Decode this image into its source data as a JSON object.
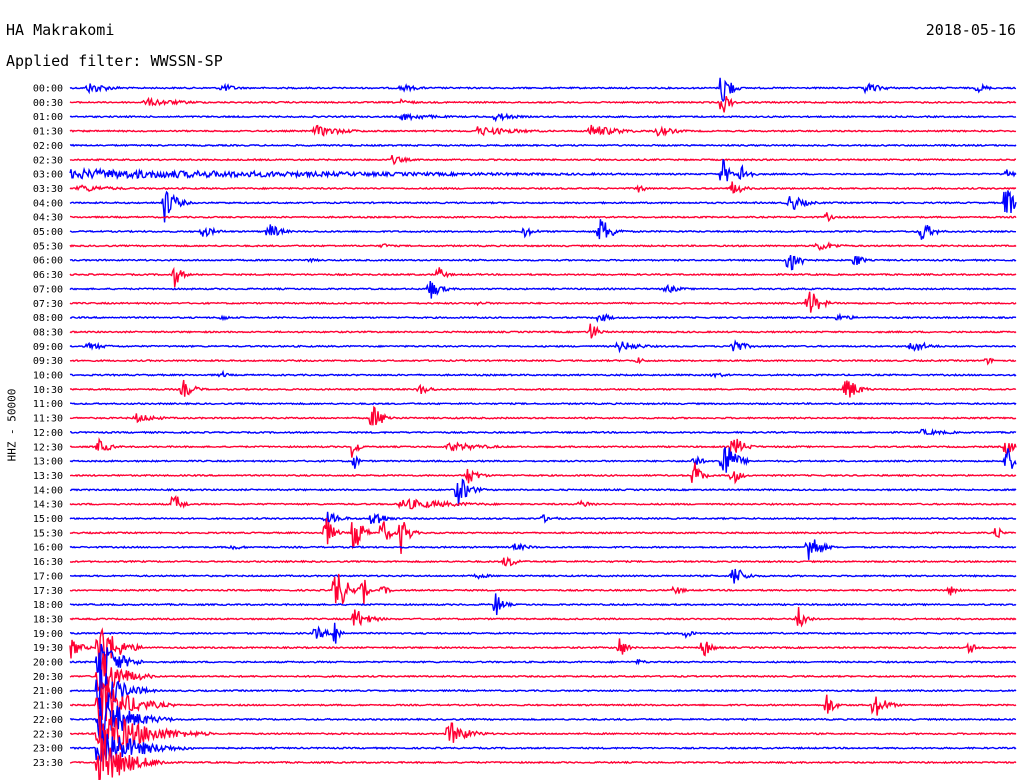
{
  "header": {
    "station": "HA Makrakomi",
    "date": "2018-05-16",
    "filter": "Applied filter: WWSSN-SP"
  },
  "chart_data": {
    "type": "line",
    "ylabel": "HHZ - 50000",
    "colors": {
      "even": "#0000ff",
      "odd": "#ff0033"
    },
    "rows": [
      {
        "label": "00:00",
        "events": [
          {
            "x": 0.02,
            "amp": 6,
            "len": 0.06
          },
          {
            "x": 0.16,
            "amp": 5,
            "len": 0.04
          },
          {
            "x": 0.35,
            "amp": 4,
            "len": 0.05
          },
          {
            "x": 0.69,
            "amp": 26,
            "len": 0.02
          },
          {
            "x": 0.84,
            "amp": 6,
            "len": 0.05
          },
          {
            "x": 0.96,
            "amp": 5,
            "len": 0.03
          }
        ]
      },
      {
        "label": "00:30",
        "events": [
          {
            "x": 0.08,
            "amp": 4,
            "len": 0.12
          },
          {
            "x": 0.35,
            "amp": 3,
            "len": 0.04
          },
          {
            "x": 0.69,
            "amp": 14,
            "len": 0.02
          }
        ]
      },
      {
        "label": "01:00",
        "events": [
          {
            "x": 0.35,
            "amp": 4,
            "len": 0.1
          },
          {
            "x": 0.45,
            "amp": 5,
            "len": 0.05
          }
        ]
      },
      {
        "label": "01:30",
        "events": [
          {
            "x": 0.26,
            "amp": 6,
            "len": 0.08
          },
          {
            "x": 0.43,
            "amp": 5,
            "len": 0.12
          },
          {
            "x": 0.55,
            "amp": 7,
            "len": 0.08
          },
          {
            "x": 0.62,
            "amp": 5,
            "len": 0.06
          }
        ]
      },
      {
        "label": "02:00",
        "events": []
      },
      {
        "label": "02:30",
        "events": [
          {
            "x": 0.34,
            "amp": 5,
            "len": 0.04
          }
        ]
      },
      {
        "label": "03:00",
        "events": [
          {
            "x": 0.0,
            "amp": 5,
            "len": 1.0
          },
          {
            "x": 0.69,
            "amp": 16,
            "len": 0.02
          },
          {
            "x": 0.71,
            "amp": 14,
            "len": 0.02
          },
          {
            "x": 0.99,
            "amp": 6,
            "len": 0.02
          }
        ]
      },
      {
        "label": "03:30",
        "events": [
          {
            "x": 0.01,
            "amp": 4,
            "len": 0.1
          },
          {
            "x": 0.6,
            "amp": 6,
            "len": 0.02
          },
          {
            "x": 0.7,
            "amp": 8,
            "len": 0.03
          }
        ]
      },
      {
        "label": "04:00",
        "events": [
          {
            "x": 0.1,
            "amp": 20,
            "len": 0.03
          },
          {
            "x": 0.76,
            "amp": 10,
            "len": 0.04
          },
          {
            "x": 0.99,
            "amp": 24,
            "len": 0.02
          }
        ]
      },
      {
        "label": "04:30",
        "events": [
          {
            "x": 0.8,
            "amp": 5,
            "len": 0.02
          }
        ]
      },
      {
        "label": "05:00",
        "events": [
          {
            "x": 0.14,
            "amp": 6,
            "len": 0.04
          },
          {
            "x": 0.21,
            "amp": 10,
            "len": 0.03
          },
          {
            "x": 0.48,
            "amp": 6,
            "len": 0.03
          },
          {
            "x": 0.56,
            "amp": 18,
            "len": 0.03
          },
          {
            "x": 0.9,
            "amp": 12,
            "len": 0.03
          }
        ]
      },
      {
        "label": "05:30",
        "events": [
          {
            "x": 0.33,
            "amp": 3,
            "len": 0.03
          },
          {
            "x": 0.79,
            "amp": 6,
            "len": 0.05
          }
        ]
      },
      {
        "label": "06:00",
        "events": [
          {
            "x": 0.25,
            "amp": 2,
            "len": 0.05
          },
          {
            "x": 0.76,
            "amp": 16,
            "len": 0.03
          },
          {
            "x": 0.83,
            "amp": 9,
            "len": 0.02
          }
        ]
      },
      {
        "label": "06:30",
        "events": [
          {
            "x": 0.11,
            "amp": 14,
            "len": 0.02
          },
          {
            "x": 0.39,
            "amp": 8,
            "len": 0.02
          }
        ]
      },
      {
        "label": "07:00",
        "events": [
          {
            "x": 0.38,
            "amp": 12,
            "len": 0.03
          },
          {
            "x": 0.63,
            "amp": 5,
            "len": 0.04
          }
        ]
      },
      {
        "label": "07:30",
        "events": [
          {
            "x": 0.43,
            "amp": 2,
            "len": 0.05
          },
          {
            "x": 0.78,
            "amp": 18,
            "len": 0.03
          }
        ]
      },
      {
        "label": "08:00",
        "events": [
          {
            "x": 0.16,
            "amp": 4,
            "len": 0.02
          },
          {
            "x": 0.56,
            "amp": 6,
            "len": 0.03
          },
          {
            "x": 0.81,
            "amp": 4,
            "len": 0.05
          }
        ]
      },
      {
        "label": "08:30",
        "events": [
          {
            "x": 0.55,
            "amp": 12,
            "len": 0.02
          }
        ]
      },
      {
        "label": "09:00",
        "events": [
          {
            "x": 0.02,
            "amp": 4,
            "len": 0.05
          },
          {
            "x": 0.58,
            "amp": 6,
            "len": 0.06
          },
          {
            "x": 0.7,
            "amp": 10,
            "len": 0.03
          },
          {
            "x": 0.89,
            "amp": 8,
            "len": 0.04
          }
        ]
      },
      {
        "label": "09:30",
        "events": [
          {
            "x": 0.6,
            "amp": 4,
            "len": 0.02
          },
          {
            "x": 0.97,
            "amp": 4,
            "len": 0.02
          }
        ]
      },
      {
        "label": "10:00",
        "events": [
          {
            "x": 0.16,
            "amp": 4,
            "len": 0.02
          },
          {
            "x": 0.68,
            "amp": 3,
            "len": 0.04
          }
        ]
      },
      {
        "label": "10:30",
        "events": [
          {
            "x": 0.12,
            "amp": 10,
            "len": 0.03
          },
          {
            "x": 0.37,
            "amp": 6,
            "len": 0.03
          },
          {
            "x": 0.82,
            "amp": 16,
            "len": 0.03
          }
        ]
      },
      {
        "label": "11:00",
        "events": []
      },
      {
        "label": "11:30",
        "events": [
          {
            "x": 0.07,
            "amp": 5,
            "len": 0.06
          },
          {
            "x": 0.32,
            "amp": 14,
            "len": 0.03
          }
        ]
      },
      {
        "label": "12:00",
        "events": [
          {
            "x": 0.9,
            "amp": 3,
            "len": 0.1
          }
        ]
      },
      {
        "label": "12:30",
        "events": [
          {
            "x": 0.03,
            "amp": 9,
            "len": 0.03
          },
          {
            "x": 0.3,
            "amp": 22,
            "len": 0.01
          },
          {
            "x": 0.4,
            "amp": 5,
            "len": 0.1
          },
          {
            "x": 0.7,
            "amp": 14,
            "len": 0.03
          },
          {
            "x": 0.99,
            "amp": 12,
            "len": 0.02
          }
        ]
      },
      {
        "label": "13:00",
        "events": [
          {
            "x": 0.3,
            "amp": 14,
            "len": 0.01
          },
          {
            "x": 0.66,
            "amp": 8,
            "len": 0.02
          },
          {
            "x": 0.69,
            "amp": 30,
            "len": 0.03
          },
          {
            "x": 0.99,
            "amp": 18,
            "len": 0.02
          }
        ]
      },
      {
        "label": "13:30",
        "events": [
          {
            "x": 0.42,
            "amp": 10,
            "len": 0.03
          },
          {
            "x": 0.66,
            "amp": 16,
            "len": 0.02
          },
          {
            "x": 0.7,
            "amp": 12,
            "len": 0.02
          }
        ]
      },
      {
        "label": "14:00",
        "events": [
          {
            "x": 0.41,
            "amp": 18,
            "len": 0.03
          }
        ]
      },
      {
        "label": "14:30",
        "events": [
          {
            "x": 0.11,
            "amp": 14,
            "len": 0.02
          },
          {
            "x": 0.35,
            "amp": 6,
            "len": 0.15
          },
          {
            "x": 0.54,
            "amp": 4,
            "len": 0.04
          }
        ]
      },
      {
        "label": "15:00",
        "events": [
          {
            "x": 0.27,
            "amp": 8,
            "len": 0.04
          },
          {
            "x": 0.32,
            "amp": 12,
            "len": 0.03
          },
          {
            "x": 0.5,
            "amp": 4,
            "len": 0.04
          }
        ]
      },
      {
        "label": "15:30",
        "events": [
          {
            "x": 0.27,
            "amp": 20,
            "len": 0.02
          },
          {
            "x": 0.3,
            "amp": 30,
            "len": 0.02
          },
          {
            "x": 0.33,
            "amp": 16,
            "len": 0.02
          },
          {
            "x": 0.35,
            "amp": 22,
            "len": 0.02
          },
          {
            "x": 0.98,
            "amp": 10,
            "len": 0.01
          }
        ]
      },
      {
        "label": "16:00",
        "events": [
          {
            "x": 0.17,
            "amp": 3,
            "len": 0.04
          },
          {
            "x": 0.47,
            "amp": 4,
            "len": 0.05
          },
          {
            "x": 0.78,
            "amp": 20,
            "len": 0.03
          }
        ]
      },
      {
        "label": "16:30",
        "events": [
          {
            "x": 0.46,
            "amp": 8,
            "len": 0.03
          }
        ]
      },
      {
        "label": "17:00",
        "events": [
          {
            "x": 0.43,
            "amp": 3,
            "len": 0.04
          },
          {
            "x": 0.7,
            "amp": 14,
            "len": 0.03
          }
        ]
      },
      {
        "label": "17:30",
        "events": [
          {
            "x": 0.28,
            "amp": 30,
            "len": 0.03
          },
          {
            "x": 0.31,
            "amp": 18,
            "len": 0.01
          },
          {
            "x": 0.33,
            "amp": 6,
            "len": 0.02
          },
          {
            "x": 0.64,
            "amp": 6,
            "len": 0.02
          },
          {
            "x": 0.93,
            "amp": 6,
            "len": 0.02
          }
        ]
      },
      {
        "label": "18:00",
        "events": [
          {
            "x": 0.45,
            "amp": 14,
            "len": 0.02
          }
        ]
      },
      {
        "label": "18:30",
        "events": [
          {
            "x": 0.3,
            "amp": 12,
            "len": 0.04
          },
          {
            "x": 0.77,
            "amp": 16,
            "len": 0.02
          }
        ]
      },
      {
        "label": "19:00",
        "events": [
          {
            "x": 0.26,
            "amp": 8,
            "len": 0.03
          },
          {
            "x": 0.28,
            "amp": 30,
            "len": 0.01
          },
          {
            "x": 0.65,
            "amp": 6,
            "len": 0.02
          }
        ]
      },
      {
        "label": "19:30",
        "events": [
          {
            "x": 0.0,
            "amp": 12,
            "len": 0.03
          },
          {
            "x": 0.03,
            "amp": 30,
            "len": 0.05
          },
          {
            "x": 0.58,
            "amp": 14,
            "len": 0.02
          },
          {
            "x": 0.67,
            "amp": 12,
            "len": 0.02
          },
          {
            "x": 0.95,
            "amp": 8,
            "len": 0.02
          }
        ]
      },
      {
        "label": "20:00",
        "events": [
          {
            "x": 0.03,
            "amp": 30,
            "len": 0.05
          },
          {
            "x": 0.6,
            "amp": 3,
            "len": 0.03
          }
        ]
      },
      {
        "label": "20:30",
        "events": [
          {
            "x": 0.03,
            "amp": 30,
            "len": 0.06
          }
        ]
      },
      {
        "label": "21:00",
        "events": [
          {
            "x": 0.03,
            "amp": 30,
            "len": 0.06
          }
        ]
      },
      {
        "label": "21:30",
        "events": [
          {
            "x": 0.03,
            "amp": 30,
            "len": 0.08
          },
          {
            "x": 0.8,
            "amp": 14,
            "len": 0.02
          },
          {
            "x": 0.85,
            "amp": 16,
            "len": 0.03
          }
        ]
      },
      {
        "label": "22:00",
        "events": [
          {
            "x": 0.03,
            "amp": 30,
            "len": 0.08
          }
        ]
      },
      {
        "label": "22:30",
        "events": [
          {
            "x": 0.03,
            "amp": 30,
            "len": 0.12
          },
          {
            "x": 0.4,
            "amp": 14,
            "len": 0.05
          }
        ]
      },
      {
        "label": "23:00",
        "events": [
          {
            "x": 0.03,
            "amp": 26,
            "len": 0.1
          }
        ]
      },
      {
        "label": "23:30",
        "events": [
          {
            "x": 0.03,
            "amp": 30,
            "len": 0.08
          }
        ]
      }
    ]
  }
}
